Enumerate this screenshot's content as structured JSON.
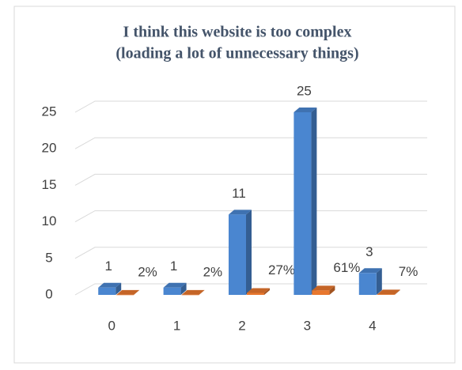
{
  "chart_data": {
    "type": "bar3d",
    "title": [
      "I think this website is too complex",
      "(loading a lot of unnecessary things)"
    ],
    "categories": [
      "0",
      "1",
      "2",
      "3",
      "4"
    ],
    "series": [
      {
        "color": "#4a86d0",
        "values": [
          1,
          1,
          11,
          25,
          3
        ]
      },
      {
        "color": "#e8772e",
        "values": [
          0.02,
          0.02,
          0.27,
          0.61,
          0.07
        ],
        "value_labels": [
          "2%",
          "2%",
          "27%",
          "61%",
          "7%"
        ]
      }
    ],
    "ylim": [
      0,
      25
    ],
    "yticks": [
      0,
      5,
      10,
      15,
      20,
      25
    ],
    "grid": true
  }
}
